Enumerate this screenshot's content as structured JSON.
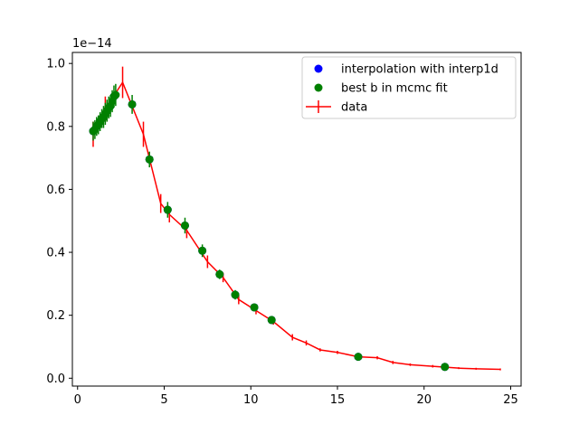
{
  "chart_data": {
    "type": "scatter",
    "title": "",
    "xlabel": "",
    "ylabel": "",
    "y_offset_label": "1e−14",
    "xlim": [
      -0.3,
      25.6
    ],
    "ylim": [
      -0.025,
      1.035
    ],
    "x_ticks": [
      0,
      5,
      10,
      15,
      20,
      25
    ],
    "x_tick_labels": [
      "0",
      "5",
      "10",
      "15",
      "20",
      "25"
    ],
    "y_ticks": [
      0.0,
      0.2,
      0.4,
      0.6,
      0.8,
      1.0
    ],
    "y_tick_labels": [
      "0.0",
      "0.2",
      "0.4",
      "0.6",
      "0.8",
      "1.0"
    ],
    "grid": false,
    "legend_position": "top-right",
    "colors": {
      "interp": "#0000ff",
      "mcmc": "#008000",
      "data": "#ff0000"
    },
    "series": [
      {
        "name": "interpolation with interp1d",
        "type": "scatter",
        "x": [
          0.9,
          1.1,
          1.3,
          1.5,
          1.7,
          1.9,
          2.1,
          3.15,
          4.15,
          5.2,
          6.2,
          7.2,
          8.2,
          9.1,
          10.2,
          11.2,
          16.2,
          21.2
        ],
        "y": [
          0.785,
          0.8,
          0.815,
          0.83,
          0.85,
          0.865,
          0.895,
          0.87,
          0.695,
          0.535,
          0.485,
          0.405,
          0.33,
          0.265,
          0.225,
          0.185,
          0.068,
          0.036
        ]
      },
      {
        "name": "best b in mcmc fit",
        "type": "scatter_errorbar",
        "x": [
          0.9,
          1.0,
          1.1,
          1.2,
          1.3,
          1.4,
          1.5,
          1.6,
          1.7,
          1.8,
          1.9,
          2.0,
          2.1,
          2.2,
          3.15,
          4.15,
          5.2,
          6.2,
          7.2,
          8.2,
          9.1,
          10.2,
          11.2,
          16.2,
          21.2
        ],
        "y": [
          0.785,
          0.79,
          0.8,
          0.805,
          0.815,
          0.825,
          0.83,
          0.84,
          0.85,
          0.86,
          0.865,
          0.88,
          0.895,
          0.9,
          0.87,
          0.695,
          0.535,
          0.485,
          0.405,
          0.33,
          0.265,
          0.225,
          0.185,
          0.068,
          0.036
        ],
        "yerr": [
          0.03,
          0.03,
          0.03,
          0.03,
          0.03,
          0.03,
          0.035,
          0.035,
          0.035,
          0.035,
          0.035,
          0.035,
          0.035,
          0.035,
          0.03,
          0.025,
          0.025,
          0.025,
          0.02,
          0.015,
          0.015,
          0.012,
          0.01,
          0.008,
          0.006
        ]
      },
      {
        "name": "data",
        "type": "line_errorbar",
        "x": [
          0.9,
          1.6,
          2.6,
          3.8,
          4.8,
          5.3,
          6.3,
          7.5,
          8.4,
          9.3,
          10.3,
          11.3,
          12.4,
          13.2,
          14.0,
          15.0,
          16.2,
          17.3,
          18.2,
          19.2,
          20.5,
          22.0,
          23.0,
          24.4
        ],
        "y": [
          0.775,
          0.855,
          0.94,
          0.775,
          0.555,
          0.52,
          0.47,
          0.37,
          0.32,
          0.25,
          0.215,
          0.18,
          0.13,
          0.112,
          0.09,
          0.082,
          0.068,
          0.065,
          0.05,
          0.043,
          0.038,
          0.032,
          0.03,
          0.028
        ],
        "yerr": [
          0.04,
          0.04,
          0.05,
          0.04,
          0.03,
          0.025,
          0.025,
          0.02,
          0.015,
          0.015,
          0.012,
          0.01,
          0.01,
          0.008,
          0.005,
          0.005,
          0.005,
          0.005,
          0.005,
          0.004,
          0.004,
          0.003,
          0.003,
          0.003
        ]
      }
    ]
  }
}
